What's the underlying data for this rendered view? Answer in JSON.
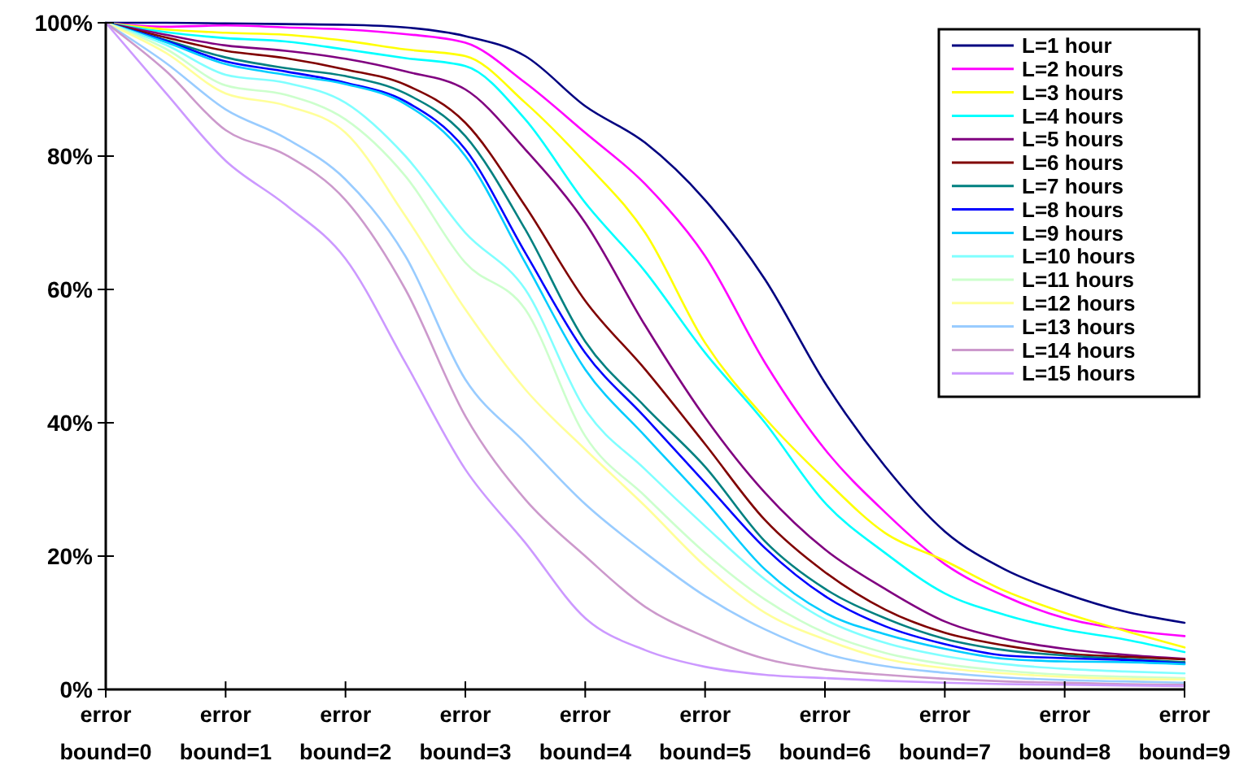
{
  "chart_data": {
    "type": "line",
    "x": [
      0,
      0.5,
      1,
      1.5,
      2,
      2.5,
      3,
      3.5,
      4,
      4.5,
      5,
      5.5,
      6,
      6.5,
      7,
      7.5,
      8,
      8.5,
      9
    ],
    "xlim": [
      0,
      9
    ],
    "xticks": [
      {
        "value": 0,
        "label": "error bound=0"
      },
      {
        "value": 1,
        "label": "error bound=1"
      },
      {
        "value": 2,
        "label": "error bound=2"
      },
      {
        "value": 3,
        "label": "error bound=3"
      },
      {
        "value": 4,
        "label": "error bound=4"
      },
      {
        "value": 5,
        "label": "error bound=5"
      },
      {
        "value": 6,
        "label": "error bound=6"
      },
      {
        "value": 7,
        "label": "error bound=7"
      },
      {
        "value": 8,
        "label": "error bound=8"
      },
      {
        "value": 9,
        "label": "error bound=9"
      }
    ],
    "ylim": [
      0,
      100
    ],
    "yticks": [
      {
        "value": 0,
        "label": "0%"
      },
      {
        "value": 20,
        "label": "20%"
      },
      {
        "value": 40,
        "label": "40%"
      },
      {
        "value": 60,
        "label": "60%"
      },
      {
        "value": 80,
        "label": "80%"
      },
      {
        "value": 100,
        "label": "100%"
      }
    ],
    "grid": false,
    "legend": "top right",
    "marker": "none",
    "line_style": "solid",
    "series": [
      {
        "name": "L=1 hour",
        "color": "#000080",
        "values": [
          100,
          100,
          99.9,
          99.8,
          99.7,
          99.3,
          98,
          95,
          87.5,
          82,
          73.4,
          61.5,
          46,
          33.5,
          23.7,
          18,
          14.4,
          11.7,
          10
        ]
      },
      {
        "name": "L=2 hours",
        "color": "#ff00ff",
        "values": [
          100,
          99.4,
          99.6,
          99.3,
          99,
          98.3,
          97,
          91,
          83.5,
          75.8,
          65,
          49,
          36,
          26.6,
          18.8,
          14,
          10.7,
          9,
          8
        ]
      },
      {
        "name": "L=3 hours",
        "color": "#ffff00",
        "values": [
          100,
          99,
          98.5,
          98.2,
          97.3,
          96,
          95,
          88,
          79,
          68.5,
          52,
          40.7,
          31.5,
          23.5,
          19.3,
          14.8,
          11.5,
          8.8,
          6.3
        ]
      },
      {
        "name": "L=4 hours",
        "color": "#00ffff",
        "values": [
          100,
          98.6,
          97.7,
          97.2,
          96,
          94.7,
          93.5,
          85.5,
          73,
          62.7,
          50.5,
          40,
          28,
          20.5,
          14.4,
          11.2,
          9,
          7.5,
          5.6
        ]
      },
      {
        "name": "L=5 hours",
        "color": "#800080",
        "values": [
          100,
          98.2,
          96.6,
          95.8,
          94.6,
          92.7,
          90,
          81,
          70,
          54.6,
          40.8,
          29.5,
          21,
          15.1,
          10.2,
          7.6,
          6.1,
          5.2,
          4.6
        ]
      },
      {
        "name": "L=6 hours",
        "color": "#800000",
        "values": [
          100,
          97.8,
          95.8,
          94.7,
          93,
          90.7,
          85,
          72.5,
          58.3,
          48,
          36.8,
          25.4,
          17.6,
          12,
          8.5,
          6.6,
          5.4,
          4.9,
          4.5
        ]
      },
      {
        "name": "L=7 hours",
        "color": "#008080",
        "values": [
          100,
          97.4,
          94.8,
          93.2,
          92,
          89.4,
          83,
          69,
          52.2,
          42.4,
          33.4,
          22.2,
          15.1,
          10.7,
          7.6,
          5.9,
          5.1,
          4.6,
          4.1
        ]
      },
      {
        "name": "L=8 hours",
        "color": "#0000ff",
        "values": [
          100,
          97.3,
          94.2,
          92.7,
          91,
          88.2,
          81,
          65.5,
          50.5,
          40.8,
          31,
          21.2,
          14,
          9.5,
          6.8,
          5.1,
          4.7,
          4.4,
          3.9
        ]
      },
      {
        "name": "L=9 hours",
        "color": "#00ccff",
        "values": [
          100,
          97.1,
          93.8,
          92.2,
          90.8,
          87.8,
          80,
          64,
          48,
          38,
          28.3,
          18,
          11.5,
          8.3,
          6.1,
          4.6,
          4.2,
          4.1,
          3.8
        ]
      },
      {
        "name": "L=10 hours",
        "color": "#80ffff",
        "values": [
          100,
          96.7,
          92.2,
          91,
          88,
          80,
          68.5,
          60,
          42,
          33,
          24.5,
          16.5,
          10.5,
          7,
          5,
          3.8,
          3.1,
          2.7,
          2.4
        ]
      },
      {
        "name": "L=11 hours",
        "color": "#ccffcc",
        "values": [
          100,
          96.1,
          90.6,
          89.2,
          85.5,
          77,
          64,
          57,
          38,
          29,
          20.5,
          13.5,
          8.5,
          5.5,
          3.8,
          2.8,
          2.2,
          1.9,
          1.7
        ]
      },
      {
        "name": "L=12 hours",
        "color": "#ffff99",
        "values": [
          100,
          95.5,
          89.4,
          87.6,
          83.5,
          71,
          57,
          45,
          36,
          27.5,
          18.5,
          11.5,
          7.5,
          4.6,
          3.2,
          2.4,
          1.9,
          1.6,
          1.5
        ]
      },
      {
        "name": "L=13 hours",
        "color": "#99ccff",
        "values": [
          100,
          94,
          87,
          82.7,
          76.5,
          65,
          46.5,
          37,
          27.8,
          20.5,
          14,
          9,
          5.4,
          3.5,
          2.5,
          1.8,
          1.4,
          1.2,
          1
        ]
      },
      {
        "name": "L=14 hours",
        "color": "#cc99cc",
        "values": [
          100,
          92.8,
          83.9,
          80.2,
          73.4,
          60,
          41,
          28.5,
          20,
          12.4,
          7.9,
          4.6,
          3,
          2.2,
          1.6,
          1.2,
          1,
          0.8,
          0.7
        ]
      },
      {
        "name": "L=15 hours",
        "color": "#cc99ff",
        "values": [
          100,
          89.5,
          79.3,
          72.7,
          64.6,
          49,
          33,
          22,
          10.7,
          5.9,
          3.4,
          2.2,
          1.7,
          1.3,
          1,
          0.8,
          0.7,
          0.6,
          0.5
        ]
      }
    ]
  }
}
